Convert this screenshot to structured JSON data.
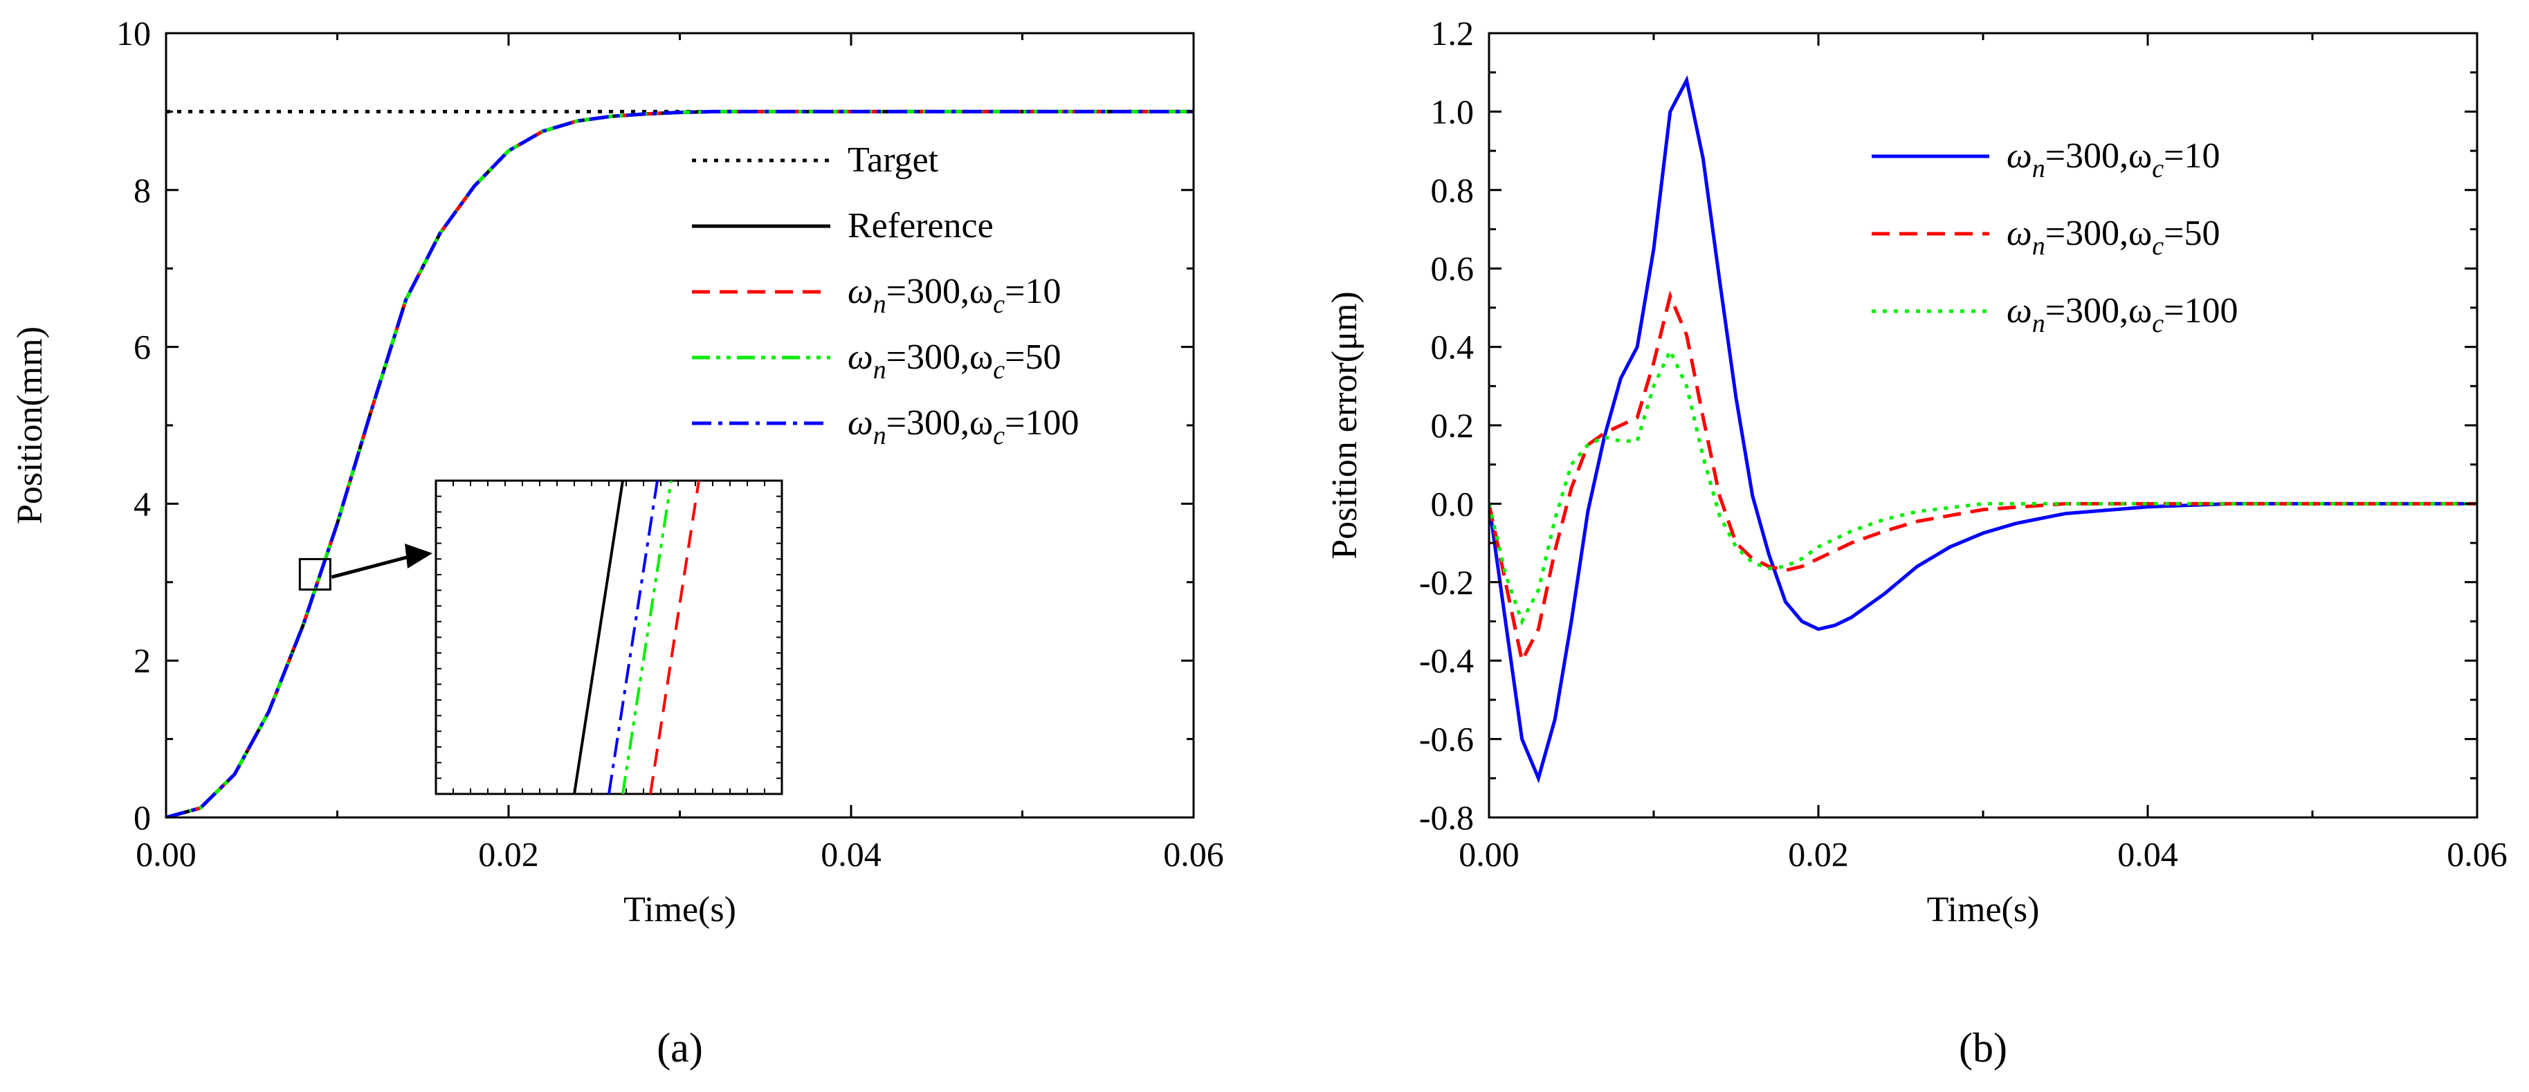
{
  "chart_data": [
    {
      "id": "a",
      "type": "line",
      "caption": "(a)",
      "xlabel": "Time(s)",
      "ylabel": "Position(mm)",
      "xlim": [
        0,
        0.06
      ],
      "ylim": [
        0,
        10
      ],
      "xticks": [
        "0.00",
        "0.02",
        "0.04",
        "0.06"
      ],
      "yticks": [
        "0",
        "2",
        "4",
        "6",
        "8",
        "10"
      ],
      "grid": false,
      "legend_position": "right",
      "series": [
        {
          "name": "Target",
          "color": "#000000",
          "dash": "dotted",
          "x": [
            0,
            0.06
          ],
          "y": [
            9,
            9
          ]
        },
        {
          "name": "Reference",
          "color": "#000000",
          "dash": "solid",
          "x": [
            0,
            0.002,
            0.004,
            0.006,
            0.008,
            0.01,
            0.012,
            0.014,
            0.016,
            0.018,
            0.02,
            0.022,
            0.024,
            0.026,
            0.028,
            0.03,
            0.032,
            0.034,
            0.036,
            0.04,
            0.06
          ],
          "y": [
            0,
            0.12,
            0.55,
            1.35,
            2.45,
            3.75,
            5.2,
            6.6,
            7.45,
            8.05,
            8.5,
            8.75,
            8.88,
            8.94,
            8.97,
            8.99,
            9.0,
            9.0,
            9.0,
            9.0,
            9.0
          ]
        },
        {
          "name_prefix": "ω",
          "name_sub1": "n",
          "name_mid": "=300,ω",
          "name_sub2": "c",
          "name_suffix": "=10",
          "color": "#ff0000",
          "dash": "dashed",
          "x": [
            0,
            0.002,
            0.004,
            0.006,
            0.008,
            0.01,
            0.012,
            0.014,
            0.016,
            0.018,
            0.02,
            0.022,
            0.024,
            0.026,
            0.028,
            0.03,
            0.032,
            0.034,
            0.036,
            0.04,
            0.06
          ],
          "y": [
            0,
            0.12,
            0.55,
            1.35,
            2.45,
            3.75,
            5.2,
            6.6,
            7.45,
            8.05,
            8.5,
            8.75,
            8.88,
            8.94,
            8.97,
            8.99,
            9.0,
            9.0,
            9.0,
            9.0,
            9.0
          ]
        },
        {
          "name_prefix": "ω",
          "name_sub1": "n",
          "name_mid": "=300,ω",
          "name_sub2": "c",
          "name_suffix": "=50",
          "color": "#00ee00",
          "dash": "dashdotdot",
          "x": [
            0,
            0.002,
            0.004,
            0.006,
            0.008,
            0.01,
            0.012,
            0.014,
            0.016,
            0.018,
            0.02,
            0.022,
            0.024,
            0.026,
            0.028,
            0.03,
            0.032,
            0.034,
            0.036,
            0.04,
            0.06
          ],
          "y": [
            0,
            0.12,
            0.55,
            1.35,
            2.45,
            3.75,
            5.2,
            6.6,
            7.45,
            8.05,
            8.5,
            8.75,
            8.88,
            8.94,
            8.97,
            8.99,
            9.0,
            9.0,
            9.0,
            9.0,
            9.0
          ]
        },
        {
          "name_prefix": "ω",
          "name_sub1": "n",
          "name_mid": "=300,ω",
          "name_sub2": "c",
          "name_suffix": "=100",
          "color": "#0000ff",
          "dash": "dashdot",
          "x": [
            0,
            0.002,
            0.004,
            0.006,
            0.008,
            0.01,
            0.012,
            0.014,
            0.016,
            0.018,
            0.02,
            0.022,
            0.024,
            0.026,
            0.028,
            0.03,
            0.032,
            0.034,
            0.036,
            0.04,
            0.06
          ],
          "y": [
            0,
            0.12,
            0.55,
            1.35,
            2.45,
            3.75,
            5.2,
            6.6,
            7.45,
            8.05,
            8.5,
            8.75,
            8.88,
            8.94,
            8.97,
            8.99,
            9.0,
            9.0,
            9.0,
            9.0,
            9.0
          ]
        }
      ],
      "zoom_inset": {
        "center": [
          0.0087,
          3.1
        ],
        "lines": [
          {
            "color": "#000000",
            "dash": "solid",
            "x1": 0.2,
            "x2": 0.27
          },
          {
            "color": "#0000ff",
            "dash": "dashdot",
            "x1": 0.25,
            "x2": 0.32
          },
          {
            "color": "#00ee00",
            "dash": "dashdotdot",
            "x1": 0.27,
            "x2": 0.34
          },
          {
            "color": "#ff0000",
            "dash": "dashed",
            "x1": 0.31,
            "x2": 0.38
          }
        ]
      }
    },
    {
      "id": "b",
      "type": "line",
      "caption": "(b)",
      "xlabel": "Time(s)",
      "ylabel": "Position error(μm)",
      "xlim": [
        0,
        0.06
      ],
      "ylim": [
        -0.8,
        1.2
      ],
      "xticks": [
        "0.00",
        "0.02",
        "0.04",
        "0.06"
      ],
      "yticks": [
        "-0.8",
        "-0.6",
        "-0.4",
        "-0.2",
        "0.0",
        "0.2",
        "0.4",
        "0.6",
        "0.8",
        "1.0",
        "1.2"
      ],
      "grid": false,
      "legend_position": "top-right",
      "series": [
        {
          "name_prefix": "ω",
          "name_sub1": "n",
          "name_mid": "=300,ω",
          "name_sub2": "c",
          "name_suffix": "=10",
          "color": "#0000ff",
          "dash": "solid",
          "x": [
            0,
            0.001,
            0.002,
            0.003,
            0.004,
            0.005,
            0.006,
            0.007,
            0.008,
            0.009,
            0.01,
            0.011,
            0.012,
            0.013,
            0.014,
            0.015,
            0.016,
            0.017,
            0.018,
            0.019,
            0.02,
            0.021,
            0.022,
            0.024,
            0.026,
            0.028,
            0.03,
            0.032,
            0.035,
            0.04,
            0.045,
            0.06
          ],
          "y": [
            0,
            -0.3,
            -0.6,
            -0.7,
            -0.55,
            -0.3,
            -0.02,
            0.17,
            0.32,
            0.4,
            0.65,
            1.0,
            1.08,
            0.88,
            0.57,
            0.27,
            0.02,
            -0.13,
            -0.25,
            -0.3,
            -0.32,
            -0.31,
            -0.29,
            -0.23,
            -0.16,
            -0.11,
            -0.075,
            -0.05,
            -0.025,
            -0.008,
            0.0,
            0.0
          ]
        },
        {
          "name_prefix": "ω",
          "name_sub1": "n",
          "name_mid": "=300,ω",
          "name_sub2": "c",
          "name_suffix": "=50",
          "color": "#ff0000",
          "dash": "dashed",
          "x": [
            0,
            0.001,
            0.002,
            0.003,
            0.004,
            0.005,
            0.006,
            0.007,
            0.008,
            0.009,
            0.01,
            0.011,
            0.012,
            0.013,
            0.014,
            0.015,
            0.016,
            0.017,
            0.018,
            0.019,
            0.02,
            0.022,
            0.024,
            0.026,
            0.028,
            0.03,
            0.035,
            0.04,
            0.06
          ],
          "y": [
            0,
            -0.2,
            -0.4,
            -0.32,
            -0.12,
            0.04,
            0.15,
            0.18,
            0.2,
            0.22,
            0.36,
            0.53,
            0.43,
            0.22,
            0.02,
            -0.1,
            -0.14,
            -0.16,
            -0.17,
            -0.16,
            -0.14,
            -0.1,
            -0.07,
            -0.045,
            -0.03,
            -0.015,
            0.0,
            0.0,
            0.0
          ]
        },
        {
          "name_prefix": "ω",
          "name_sub1": "n",
          "name_mid": "=300,ω",
          "name_sub2": "c",
          "name_suffix": "=100",
          "color": "#00ee00",
          "dash": "dotted",
          "x": [
            0,
            0.001,
            0.002,
            0.003,
            0.004,
            0.005,
            0.006,
            0.007,
            0.008,
            0.009,
            0.01,
            0.011,
            0.012,
            0.013,
            0.014,
            0.015,
            0.016,
            0.017,
            0.018,
            0.019,
            0.02,
            0.022,
            0.024,
            0.026,
            0.028,
            0.03,
            0.035,
            0.04,
            0.06
          ],
          "y": [
            0,
            -0.18,
            -0.3,
            -0.22,
            -0.04,
            0.1,
            0.15,
            0.17,
            0.16,
            0.16,
            0.3,
            0.39,
            0.3,
            0.12,
            -0.03,
            -0.11,
            -0.15,
            -0.165,
            -0.16,
            -0.14,
            -0.11,
            -0.07,
            -0.04,
            -0.02,
            -0.01,
            0.0,
            0.0,
            0.0,
            0.0
          ]
        }
      ]
    }
  ]
}
